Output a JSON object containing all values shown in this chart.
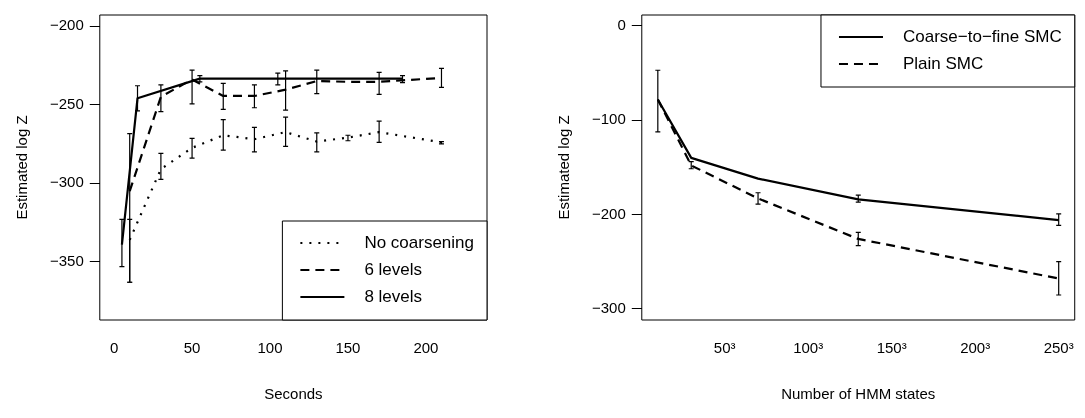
{
  "chart_data": [
    {
      "type": "line",
      "xlabel": "Seconds",
      "ylabel": "Estimated log Z",
      "xlim": [
        -9.2,
        239.2
      ],
      "ylim": [
        -387,
        -193
      ],
      "xticks": [
        0,
        50,
        100,
        150,
        200
      ],
      "yticks": [
        -350,
        -300,
        -250,
        -200
      ],
      "legend": "bottom right",
      "marker": "none",
      "grid": false,
      "series": [
        {
          "name": "No coarsening",
          "color": "#000000",
          "line_style": "dotted",
          "x": [
            10,
            30,
            50,
            70,
            90,
            110,
            130,
            150,
            170,
            210
          ],
          "values": [
            -336,
            -291,
            -277.5,
            -269.5,
            -272,
            -267.5,
            -273.5,
            -271,
            -267.5,
            -274
          ],
          "errors": [
            [
              -363,
              -323
            ],
            [
              -297.5,
              -281
            ],
            [
              -284,
              -271.5
            ],
            [
              -279,
              -259.5
            ],
            [
              -280,
              -264.5
            ],
            [
              -276.5,
              -258
            ],
            [
              -280,
              -268
            ],
            [
              -273,
              -269.5
            ],
            [
              -274,
              -260.5
            ],
            [
              -275,
              -273.5
            ]
          ]
        },
        {
          "name": "6 levels",
          "color": "#000000",
          "line_style": "dashed",
          "x": [
            10,
            30,
            50,
            70,
            90,
            110,
            130,
            150,
            170,
            210
          ],
          "values": [
            -305,
            -245,
            -234,
            -244.5,
            -244.5,
            -240.5,
            -235,
            -235.5,
            -235.5,
            -233
          ],
          "errors": [
            [
              -363,
              -268.5
            ],
            [
              -254.5,
              -237.5
            ],
            [
              -249.5,
              -228
            ],
            [
              -253,
              -236.5
            ],
            [
              -252,
              -237.5
            ],
            [
              -253.5,
              -228.5
            ],
            [
              -243,
              -228
            ],
            null,
            [
              -243.5,
              -229.5
            ],
            [
              -239,
              -227
            ]
          ]
        },
        {
          "name": "8 levels",
          "color": "#000000",
          "line_style": "solid",
          "x": [
            5,
            15,
            55,
            105,
            185
          ],
          "values": [
            -339,
            -246,
            -233.5,
            -233.5,
            -233.5
          ],
          "errors": [
            [
              -353,
              -323
            ],
            [
              -254,
              -238
            ],
            [
              -235.5,
              -231.5
            ],
            [
              -237.5,
              -230
            ],
            [
              -236,
              -231.5
            ]
          ]
        }
      ]
    },
    {
      "type": "line",
      "xlabel": "Number of HMM states",
      "ylabel": "Estimated log Z",
      "xlim": [
        0.4,
        259.6
      ],
      "ylim": [
        -312,
        11.6
      ],
      "xticks": [
        {
          "value": 50,
          "label": "50³"
        },
        {
          "value": 100,
          "label": "100³"
        },
        {
          "value": 150,
          "label": "150³"
        },
        {
          "value": 200,
          "label": "200³"
        },
        {
          "value": 250,
          "label": "250³"
        }
      ],
      "yticks": [
        -300,
        -200,
        -100,
        0
      ],
      "legend": "top right",
      "marker": "none",
      "grid": false,
      "series": [
        {
          "name": "Coarse−to−fine SMC",
          "color": "#000000",
          "line_style": "solid",
          "x": [
            10,
            30,
            70,
            130,
            250
          ],
          "values": [
            -78,
            -140,
            -162,
            -184,
            -206
          ],
          "errors": [
            [
              -112.5,
              -47
            ],
            null,
            null,
            [
              -187,
              -179.5
            ],
            [
              -211.5,
              -199.5
            ]
          ]
        },
        {
          "name": "Plain SMC",
          "color": "#000000",
          "line_style": "dashed",
          "x": [
            10,
            30,
            70,
            130,
            250
          ],
          "values": [
            -78,
            -148,
            -183,
            -226,
            -268
          ],
          "errors": [
            null,
            [
              -151.5,
              -144
            ],
            [
              -189,
              -177
            ],
            [
              -233,
              -219
            ],
            [
              -285.5,
              -250
            ]
          ]
        }
      ]
    }
  ]
}
